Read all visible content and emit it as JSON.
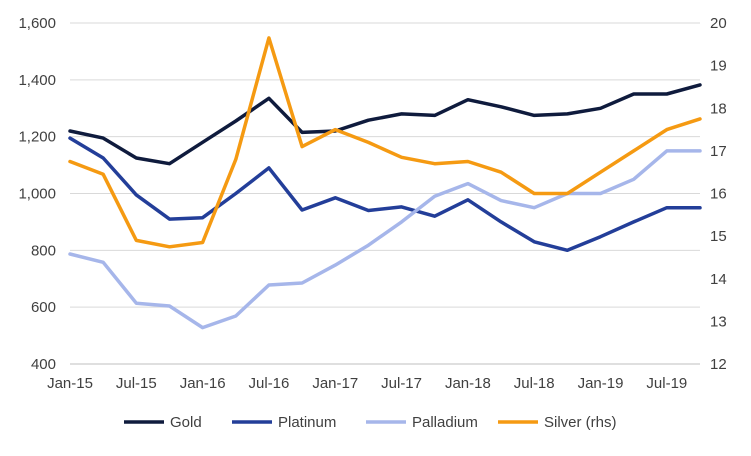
{
  "chart_data": {
    "type": "line",
    "title": "",
    "x_tick_labels": [
      "Jan-15",
      "Jul-15",
      "Jan-16",
      "Jul-16",
      "Jan-17",
      "Jul-17",
      "Jan-18",
      "Jul-18",
      "Jan-19",
      "Jul-19"
    ],
    "x": [
      "Jan-15",
      "Apr-15",
      "Jul-15",
      "Oct-15",
      "Jan-16",
      "Apr-16",
      "Jul-16",
      "Oct-16",
      "Jan-17",
      "Apr-17",
      "Jul-17",
      "Oct-17",
      "Jan-18",
      "Apr-18",
      "Jul-18",
      "Oct-18",
      "Jan-19",
      "Apr-19",
      "Jul-19",
      "Oct-19"
    ],
    "y_left": {
      "min": 400,
      "max": 1600,
      "ticks": [
        400,
        600,
        800,
        1000,
        1200,
        1400,
        1600
      ],
      "tick_labels": [
        "400",
        "600",
        "800",
        "1,000",
        "1,200",
        "1,400",
        "1,600"
      ]
    },
    "y_right": {
      "min": 12,
      "max": 20,
      "ticks": [
        12,
        13,
        14,
        15,
        16,
        17,
        18,
        19,
        20
      ],
      "tick_labels": [
        "12",
        "13",
        "14",
        "15",
        "16",
        "17",
        "18",
        "19",
        "20"
      ]
    },
    "grid": "horizontal",
    "legend_position": "bottom",
    "series": [
      {
        "name": "Gold",
        "axis": "left",
        "color": "#0f1b3d",
        "values": [
          1220,
          1195,
          1125,
          1105,
          1180,
          1255,
          1335,
          1215,
          1220,
          1258,
          1280,
          1275,
          1330,
          1305,
          1275,
          1280,
          1300,
          1350,
          1350,
          1382
        ]
      },
      {
        "name": "Platinum",
        "axis": "left",
        "color": "#233e99",
        "values": [
          1195,
          1125,
          995,
          910,
          915,
          1000,
          1090,
          942,
          985,
          940,
          953,
          920,
          978,
          900,
          830,
          800,
          848,
          900,
          950,
          950
        ]
      },
      {
        "name": "Palladium",
        "axis": "left",
        "color": "#a6b6ea",
        "values": [
          787,
          758,
          614,
          604,
          528,
          569,
          678,
          685,
          748,
          818,
          900,
          990,
          1035,
          975,
          950,
          1000,
          1000,
          1050,
          1150,
          1150
        ]
      },
      {
        "name": "Silver (rhs)",
        "axis": "right",
        "color": "#f59a12",
        "values": [
          16.75,
          16.45,
          14.9,
          14.75,
          14.85,
          16.8,
          19.65,
          17.1,
          17.5,
          17.2,
          16.85,
          16.7,
          16.75,
          16.5,
          16.0,
          16.0,
          16.5,
          17.0,
          17.5,
          17.75
        ]
      }
    ]
  }
}
